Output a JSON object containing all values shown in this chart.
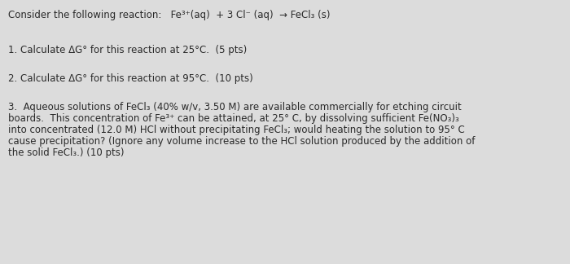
{
  "background_color": "#dcdcdc",
  "title_line": "Consider the following reaction:   Fe³⁺(aq)  + 3 Cl⁻ (aq)  → FeCl₃ (s)",
  "item1": "1. Calculate ΔG° for this reaction at 25°C.  (5 pts)",
  "item2": "2. Calculate ΔG° for this reaction at 95°C.  (10 pts)",
  "item3_line1": "3.  Aqueous solutions of FeCl₃ (40% w/v, 3.50 M) are available commercially for etching circuit",
  "item3_line2": "boards.  This concentration of Fe³⁺ can be attained, at 25° C, by dissolving sufficient Fe(NO₃)₃",
  "item3_line3": "into concentrated (12.0 M) HCl without precipitating FeCl₃; would heating the solution to 95° C",
  "item3_line4": "cause precipitation? (Ignore any volume increase to the HCl solution produced by the addition of",
  "item3_line5": "the solid FeCl₃.) (10 pts)",
  "text_color": "#2a2a2a",
  "font_size": 8.5
}
